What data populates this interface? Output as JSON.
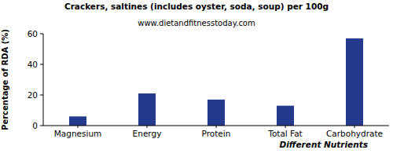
{
  "chart_data": {
    "type": "bar",
    "title": "Crackers, saltines (includes oyster, soda, soup) per 100g",
    "subtitle": "www.dietandfitnesstoday.com",
    "x_label": "Different Nutrients",
    "y_label": "Percentage of RDA (%)",
    "categories": [
      "Magnesium",
      "Energy",
      "Protein",
      "Total Fat",
      "Carbohydrate"
    ],
    "values": [
      6,
      21,
      17,
      13,
      57
    ],
    "color": "#233a8c",
    "ylim": [
      0,
      60
    ],
    "yticks": [
      0,
      20,
      40,
      60
    ],
    "grid": false
  }
}
